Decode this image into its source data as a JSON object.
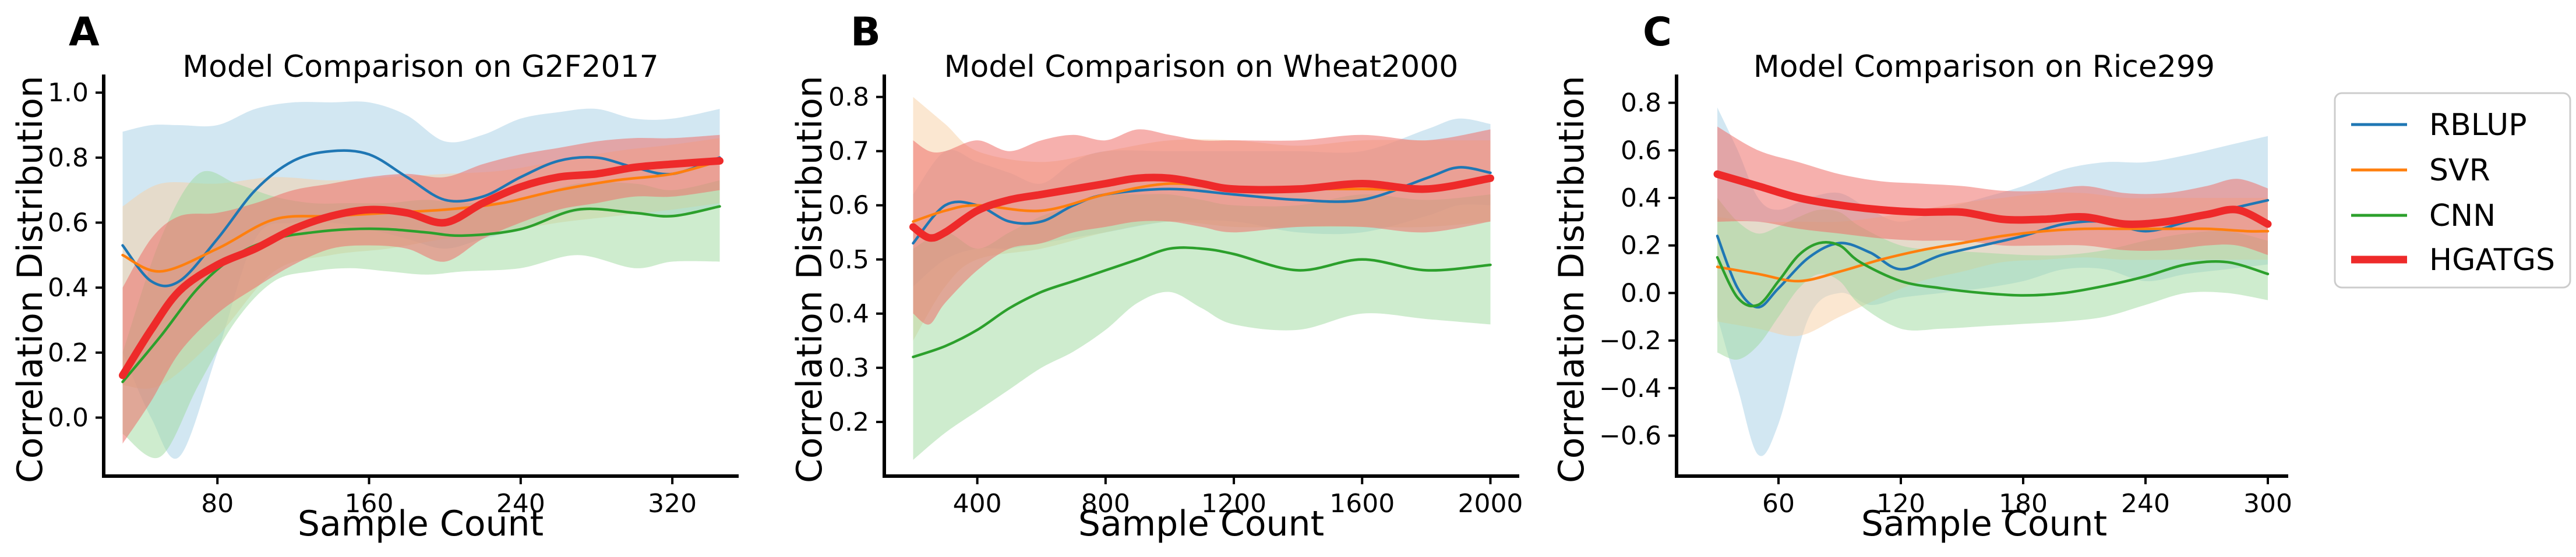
{
  "chart_data": [
    {
      "panel_label": "A",
      "type": "line",
      "title": "Model Comparison on G2F2017",
      "xlabel": "Sample Count",
      "ylabel": "Correlation Distribution",
      "xlim": [
        20,
        355
      ],
      "ylim": [
        -0.18,
        1.02
      ],
      "xticks": [
        80,
        160,
        240,
        320
      ],
      "xtick_labels": [
        "80",
        "160",
        "240",
        "320"
      ],
      "yticks": [
        0.0,
        0.2,
        0.4,
        0.6,
        0.8,
        1.0
      ],
      "ytick_labels": [
        "0.0",
        "0.2",
        "0.4",
        "0.6",
        "0.8",
        "1.0"
      ],
      "series": [
        {
          "name": "RBLUP",
          "x": [
            30,
            45,
            60,
            80,
            100,
            120,
            140,
            160,
            180,
            200,
            220,
            240,
            260,
            280,
            300,
            320,
            345
          ],
          "mean": [
            0.53,
            0.42,
            0.42,
            0.55,
            0.7,
            0.79,
            0.82,
            0.81,
            0.74,
            0.67,
            0.68,
            0.74,
            0.79,
            0.8,
            0.77,
            0.75,
            0.8
          ],
          "lower": [
            0.2,
            0.0,
            -0.12,
            0.2,
            0.55,
            0.6,
            0.6,
            0.58,
            0.55,
            0.52,
            0.55,
            0.58,
            0.62,
            0.64,
            0.63,
            0.62,
            0.65
          ],
          "upper": [
            0.88,
            0.9,
            0.9,
            0.9,
            0.95,
            0.97,
            0.97,
            0.97,
            0.93,
            0.85,
            0.87,
            0.92,
            0.94,
            0.95,
            0.92,
            0.92,
            0.95
          ]
        },
        {
          "name": "SVR",
          "x": [
            30,
            50,
            80,
            110,
            140,
            170,
            200,
            230,
            260,
            290,
            320,
            345
          ],
          "mean": [
            0.5,
            0.45,
            0.52,
            0.61,
            0.62,
            0.63,
            0.64,
            0.66,
            0.7,
            0.73,
            0.75,
            0.79
          ],
          "lower": [
            0.1,
            0.1,
            0.25,
            0.45,
            0.5,
            0.52,
            0.55,
            0.57,
            0.6,
            0.62,
            0.64,
            0.66
          ],
          "upper": [
            0.65,
            0.72,
            0.72,
            0.74,
            0.73,
            0.74,
            0.75,
            0.76,
            0.79,
            0.82,
            0.84,
            0.86
          ]
        },
        {
          "name": "CNN",
          "x": [
            30,
            50,
            70,
            90,
            110,
            130,
            150,
            170,
            190,
            210,
            240,
            270,
            300,
            320,
            345
          ],
          "mean": [
            0.11,
            0.25,
            0.4,
            0.5,
            0.55,
            0.57,
            0.58,
            0.58,
            0.57,
            0.56,
            0.58,
            0.64,
            0.63,
            0.62,
            0.65
          ],
          "lower": [
            -0.05,
            -0.12,
            0.1,
            0.3,
            0.42,
            0.45,
            0.46,
            0.45,
            0.44,
            0.45,
            0.46,
            0.5,
            0.46,
            0.48,
            0.48
          ],
          "upper": [
            0.2,
            0.55,
            0.75,
            0.72,
            0.68,
            0.66,
            0.66,
            0.66,
            0.67,
            0.66,
            0.67,
            0.72,
            0.72,
            0.7,
            0.73
          ]
        },
        {
          "name": "HGATGS",
          "x": [
            30,
            45,
            60,
            80,
            100,
            120,
            140,
            160,
            180,
            200,
            220,
            240,
            260,
            280,
            300,
            320,
            345
          ],
          "mean": [
            0.13,
            0.27,
            0.39,
            0.47,
            0.52,
            0.58,
            0.62,
            0.64,
            0.63,
            0.6,
            0.66,
            0.71,
            0.74,
            0.75,
            0.77,
            0.78,
            0.79
          ],
          "lower": [
            -0.08,
            0.05,
            0.2,
            0.32,
            0.4,
            0.47,
            0.52,
            0.53,
            0.52,
            0.48,
            0.55,
            0.6,
            0.64,
            0.66,
            0.68,
            0.68,
            0.7
          ],
          "upper": [
            0.4,
            0.55,
            0.62,
            0.63,
            0.66,
            0.7,
            0.72,
            0.74,
            0.75,
            0.74,
            0.78,
            0.81,
            0.83,
            0.85,
            0.86,
            0.86,
            0.87
          ]
        }
      ]
    },
    {
      "panel_label": "B",
      "type": "line",
      "title": "Model Comparison on Wheat2000",
      "xlabel": "Sample Count",
      "ylabel": "Correlation Distribution",
      "xlim": [
        110,
        2090
      ],
      "ylim": [
        0.1,
        0.82
      ],
      "xticks": [
        400,
        800,
        1200,
        1600,
        2000
      ],
      "xtick_labels": [
        "400",
        "800",
        "1200",
        "1600",
        "2000"
      ],
      "yticks": [
        0.2,
        0.3,
        0.4,
        0.5,
        0.6,
        0.7,
        0.8
      ],
      "ytick_labels": [
        "0.2",
        "0.3",
        "0.4",
        "0.5",
        "0.6",
        "0.7",
        "0.8"
      ],
      "series": [
        {
          "name": "RBLUP",
          "x": [
            200,
            300,
            400,
            500,
            600,
            700,
            800,
            1000,
            1200,
            1400,
            1600,
            1800,
            1900,
            2000
          ],
          "mean": [
            0.53,
            0.6,
            0.6,
            0.57,
            0.57,
            0.6,
            0.62,
            0.63,
            0.62,
            0.61,
            0.61,
            0.65,
            0.67,
            0.66
          ],
          "lower": [
            0.45,
            0.5,
            0.52,
            0.52,
            0.53,
            0.54,
            0.55,
            0.57,
            0.57,
            0.55,
            0.55,
            0.58,
            0.6,
            0.6
          ],
          "upper": [
            0.62,
            0.7,
            0.68,
            0.66,
            0.64,
            0.68,
            0.7,
            0.7,
            0.7,
            0.7,
            0.7,
            0.74,
            0.76,
            0.75
          ]
        },
        {
          "name": "SVR",
          "x": [
            200,
            300,
            400,
            600,
            800,
            1000,
            1200,
            1400,
            1600,
            1800,
            2000
          ],
          "mean": [
            0.57,
            0.59,
            0.6,
            0.59,
            0.62,
            0.64,
            0.63,
            0.63,
            0.63,
            0.63,
            0.65
          ],
          "lower": [
            0.35,
            0.45,
            0.5,
            0.52,
            0.55,
            0.57,
            0.56,
            0.56,
            0.56,
            0.56,
            0.57
          ],
          "upper": [
            0.8,
            0.75,
            0.7,
            0.68,
            0.7,
            0.72,
            0.72,
            0.71,
            0.72,
            0.72,
            0.72
          ]
        },
        {
          "name": "CNN",
          "x": [
            200,
            300,
            400,
            500,
            600,
            700,
            800,
            900,
            1000,
            1100,
            1200,
            1400,
            1600,
            1800,
            2000
          ],
          "mean": [
            0.32,
            0.34,
            0.37,
            0.41,
            0.44,
            0.46,
            0.48,
            0.5,
            0.52,
            0.52,
            0.51,
            0.48,
            0.5,
            0.48,
            0.49
          ],
          "lower": [
            0.13,
            0.18,
            0.22,
            0.26,
            0.3,
            0.33,
            0.37,
            0.42,
            0.44,
            0.41,
            0.38,
            0.37,
            0.4,
            0.39,
            0.38
          ],
          "upper": [
            0.52,
            0.55,
            0.52,
            0.55,
            0.58,
            0.6,
            0.62,
            0.62,
            0.62,
            0.61,
            0.6,
            0.6,
            0.62,
            0.61,
            0.62
          ]
        },
        {
          "name": "HGATGS",
          "x": [
            200,
            250,
            300,
            400,
            500,
            600,
            700,
            800,
            900,
            1000,
            1100,
            1200,
            1400,
            1600,
            1800,
            2000
          ],
          "mean": [
            0.56,
            0.54,
            0.55,
            0.59,
            0.61,
            0.62,
            0.63,
            0.64,
            0.65,
            0.65,
            0.64,
            0.63,
            0.63,
            0.64,
            0.63,
            0.65
          ],
          "lower": [
            0.4,
            0.38,
            0.42,
            0.48,
            0.52,
            0.53,
            0.55,
            0.56,
            0.57,
            0.57,
            0.56,
            0.55,
            0.56,
            0.56,
            0.55,
            0.57
          ],
          "upper": [
            0.72,
            0.7,
            0.7,
            0.72,
            0.7,
            0.72,
            0.73,
            0.72,
            0.74,
            0.73,
            0.72,
            0.72,
            0.72,
            0.73,
            0.72,
            0.74
          ]
        }
      ]
    },
    {
      "panel_label": "C",
      "type": "line",
      "title": "Model Comparison on Rice299",
      "xlabel": "Sample Count",
      "ylabel": "Correlation Distribution",
      "xlim": [
        10,
        310
      ],
      "ylim": [
        -0.77,
        0.87
      ],
      "xticks": [
        60,
        120,
        180,
        240,
        300
      ],
      "xtick_labels": [
        "60",
        "120",
        "180",
        "240",
        "300"
      ],
      "yticks": [
        -0.6,
        -0.4,
        -0.2,
        0.0,
        0.2,
        0.4,
        0.6,
        0.8
      ],
      "ytick_labels": [
        "−0.6",
        "−0.4",
        "−0.2",
        "0.0",
        "0.2",
        "0.4",
        "0.6",
        "0.8"
      ],
      "series": [
        {
          "name": "RBLUP",
          "x": [
            30,
            40,
            50,
            60,
            75,
            90,
            105,
            120,
            140,
            160,
            180,
            200,
            220,
            240,
            260,
            280,
            300
          ],
          "mean": [
            0.24,
            0.02,
            -0.06,
            0.02,
            0.15,
            0.21,
            0.17,
            0.1,
            0.16,
            0.2,
            0.24,
            0.29,
            0.3,
            0.26,
            0.3,
            0.35,
            0.39
          ],
          "lower": [
            -0.1,
            -0.4,
            -0.68,
            -0.55,
            -0.1,
            0.0,
            -0.05,
            -0.02,
            0.0,
            0.02,
            0.05,
            0.1,
            0.1,
            0.05,
            0.08,
            0.1,
            0.12
          ],
          "upper": [
            0.78,
            0.6,
            0.4,
            0.35,
            0.4,
            0.42,
            0.35,
            0.3,
            0.35,
            0.4,
            0.45,
            0.52,
            0.55,
            0.55,
            0.58,
            0.62,
            0.66
          ]
        },
        {
          "name": "SVR",
          "x": [
            30,
            50,
            70,
            90,
            110,
            130,
            150,
            170,
            190,
            210,
            230,
            250,
            270,
            290,
            300
          ],
          "mean": [
            0.11,
            0.08,
            0.05,
            0.09,
            0.14,
            0.18,
            0.21,
            0.24,
            0.26,
            0.27,
            0.27,
            0.27,
            0.27,
            0.26,
            0.26
          ],
          "lower": [
            -0.12,
            -0.15,
            -0.18,
            -0.1,
            -0.02,
            0.05,
            0.09,
            0.13,
            0.14,
            0.15,
            0.14,
            0.14,
            0.14,
            0.14,
            0.14
          ],
          "upper": [
            0.32,
            0.3,
            0.3,
            0.3,
            0.32,
            0.35,
            0.38,
            0.4,
            0.42,
            0.42,
            0.4,
            0.4,
            0.4,
            0.4,
            0.4
          ]
        },
        {
          "name": "CNN",
          "x": [
            30,
            40,
            50,
            60,
            70,
            80,
            90,
            100,
            120,
            140,
            160,
            180,
            200,
            220,
            240,
            260,
            280,
            300
          ],
          "mean": [
            0.15,
            -0.02,
            -0.05,
            0.05,
            0.16,
            0.21,
            0.2,
            0.13,
            0.05,
            0.02,
            0.0,
            -0.01,
            0.0,
            0.03,
            0.07,
            0.12,
            0.13,
            0.08
          ],
          "lower": [
            -0.25,
            -0.28,
            -0.22,
            -0.1,
            0.02,
            0.08,
            0.05,
            -0.05,
            -0.15,
            -0.15,
            -0.14,
            -0.13,
            -0.12,
            -0.1,
            -0.05,
            0.0,
            0.0,
            -0.03
          ],
          "upper": [
            0.4,
            0.3,
            0.25,
            0.28,
            0.32,
            0.35,
            0.34,
            0.28,
            0.2,
            0.18,
            0.17,
            0.16,
            0.16,
            0.18,
            0.22,
            0.25,
            0.26,
            0.22
          ]
        },
        {
          "name": "HGATGS",
          "x": [
            30,
            50,
            70,
            90,
            110,
            130,
            150,
            170,
            190,
            210,
            230,
            250,
            270,
            285,
            300
          ],
          "mean": [
            0.5,
            0.45,
            0.4,
            0.37,
            0.35,
            0.34,
            0.34,
            0.31,
            0.31,
            0.32,
            0.29,
            0.3,
            0.33,
            0.35,
            0.29
          ],
          "lower": [
            0.3,
            0.3,
            0.27,
            0.25,
            0.23,
            0.22,
            0.22,
            0.2,
            0.2,
            0.2,
            0.18,
            0.18,
            0.2,
            0.2,
            0.16
          ],
          "upper": [
            0.7,
            0.6,
            0.55,
            0.5,
            0.47,
            0.46,
            0.45,
            0.43,
            0.43,
            0.45,
            0.42,
            0.42,
            0.45,
            0.48,
            0.44
          ]
        }
      ]
    }
  ],
  "legend": {
    "position": "right",
    "items": [
      {
        "name": "RBLUP",
        "color": "#1f77b4",
        "band_color": "#a6cfe6",
        "emphasis": false
      },
      {
        "name": "SVR",
        "color": "#ff7f0e",
        "band_color": "#f7cfa3",
        "emphasis": false
      },
      {
        "name": "CNN",
        "color": "#2ca02c",
        "band_color": "#9ed99e",
        "emphasis": false
      },
      {
        "name": "HGATGS",
        "color": "#ee2a2a",
        "band_color": "#ef6f6a",
        "emphasis": true
      }
    ]
  }
}
